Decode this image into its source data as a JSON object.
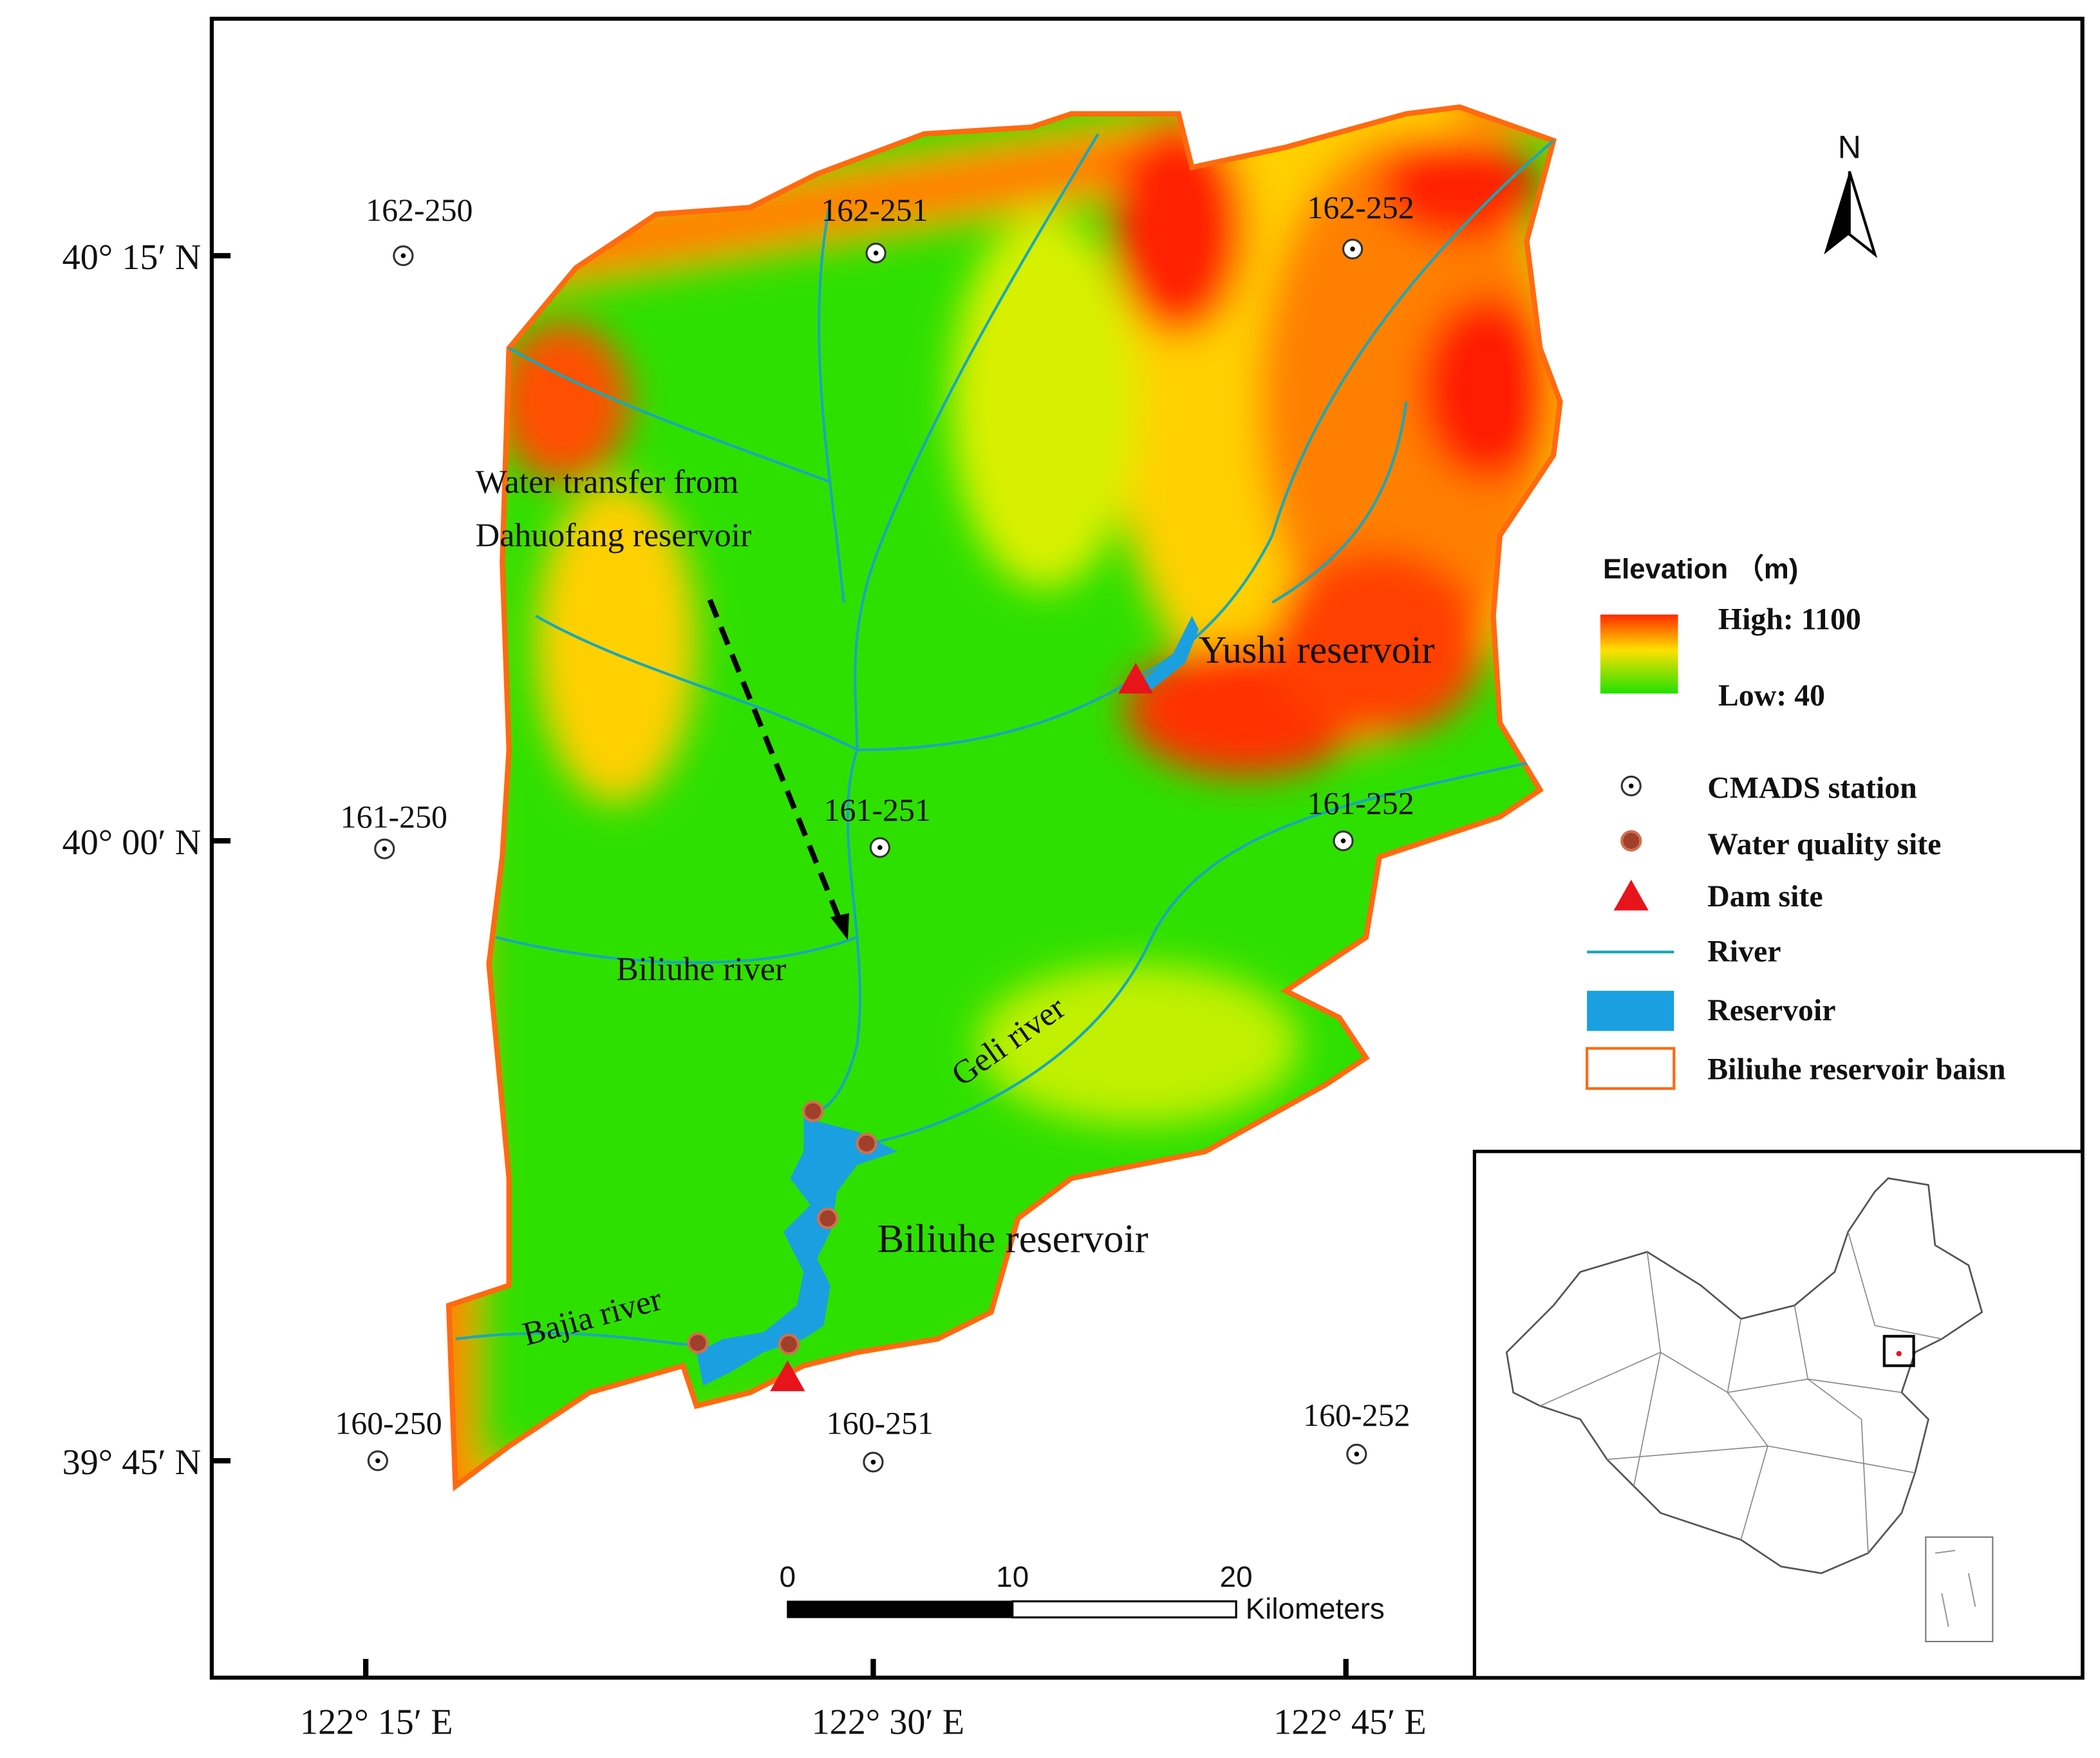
{
  "map": {
    "latitude_labels": [
      "40° 15′ N",
      "40° 00′ N",
      "39° 45′ N"
    ],
    "longitude_labels": [
      "122° 15′ E",
      "122° 30′ E",
      "122° 45′ E"
    ],
    "north": "N",
    "stations": [
      "162-250",
      "162-251",
      "162-252",
      "161-250",
      "161-251",
      "161-252",
      "160-250",
      "160-251",
      "160-252"
    ],
    "annotations": {
      "water_transfer": [
        "Water transfer from",
        "Dahuofang reservoir"
      ],
      "yushi": "Yushi reservoir",
      "biliuhe_river": "Biliuhe river",
      "geli_river": "Geli river",
      "biliuhe_reservoir": "Biliuhe reservoir",
      "bajia_river": "Bajia river"
    },
    "legend": {
      "title": "Elevation （m)",
      "high": "High: 1100",
      "low": "Low: 40",
      "items": [
        "CMADS station",
        "Water quality site",
        "Dam site",
        "River",
        "Reservoir",
        "Biliuhe reservoir baisn"
      ]
    },
    "scale_bar": {
      "ticks": [
        0,
        10,
        20
      ],
      "unit": "Kilometers"
    }
  }
}
